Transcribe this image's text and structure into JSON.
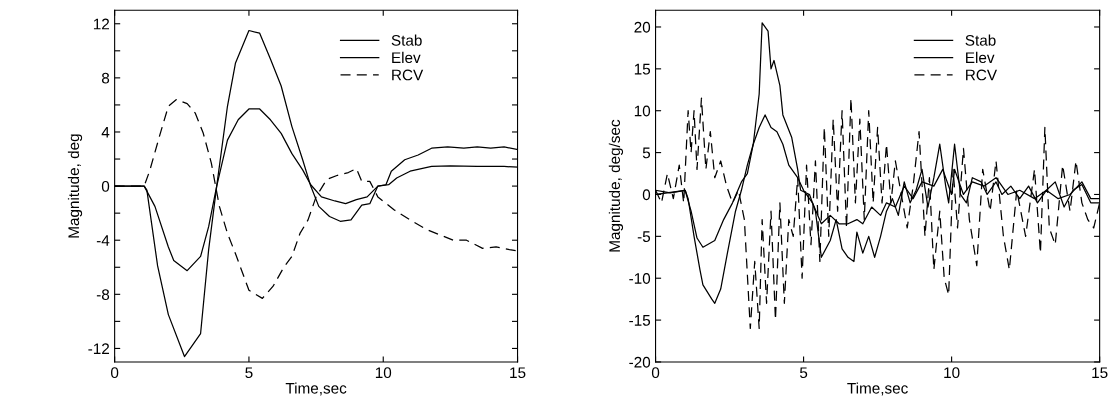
{
  "chart_data": [
    {
      "type": "line",
      "xlabel": "Time,sec",
      "ylabel": "Magnitude, deg",
      "xlim": [
        0,
        15
      ],
      "xticks": [
        0,
        5,
        10,
        15
      ],
      "ylim": [
        -13,
        13
      ],
      "yticks": [
        -12,
        {
          "value": -10,
          "label": null
        },
        -8,
        {
          "value": -6,
          "label": null
        },
        -4,
        {
          "value": -2,
          "label": null
        },
        0,
        {
          "value": 2,
          "label": null
        },
        4,
        {
          "value": 6,
          "label": null
        },
        8,
        {
          "value": 10,
          "label": null
        },
        12
      ],
      "grid": false,
      "legend": "top right",
      "marker": "none",
      "series": [
        {
          "name": "Stab",
          "color": "#000000",
          "line_style": "solid",
          "x": [
            0,
            1.1,
            1.2,
            1.6,
            2.0,
            2.6,
            3.2,
            3.5,
            3.8,
            4.2,
            4.5,
            5.0,
            5.4,
            5.8,
            6.2,
            6.6,
            7.0,
            7.3,
            7.6,
            8.0,
            8.4,
            8.8,
            9.2,
            9.5,
            9.8,
            10.1,
            10.3,
            10.8,
            11.3,
            11.8,
            12.4,
            13,
            13.5,
            14,
            14.5,
            15
          ],
          "values": [
            0,
            0,
            -0.3,
            -5.9,
            -9.5,
            -12.6,
            -10.9,
            -4.7,
            0,
            5.9,
            9.1,
            11.5,
            11.3,
            9.4,
            7.4,
            4.4,
            1.95,
            0,
            -1.5,
            -2.25,
            -2.6,
            -2.5,
            -1.4,
            -1.3,
            0,
            0.1,
            1.1,
            1.95,
            2.3,
            2.8,
            2.9,
            2.8,
            2.9,
            2.8,
            2.9,
            2.7
          ]
        },
        {
          "name": "Elev",
          "color": "#000000",
          "line_style": "solid",
          "x": [
            0,
            1.1,
            1.5,
            2.0,
            2.2,
            2.7,
            3.2,
            3.5,
            3.8,
            4.2,
            4.6,
            5.0,
            5.4,
            5.8,
            6.2,
            6.6,
            7.0,
            7.3,
            7.7,
            8.2,
            8.6,
            9.0,
            9.4,
            9.8,
            10.2,
            10.5,
            11,
            11.8,
            12.5,
            13.5,
            14.5,
            15
          ],
          "values": [
            0,
            0,
            -1.5,
            -4.5,
            -5.5,
            -6.25,
            -5.2,
            -3,
            0,
            3.4,
            4.9,
            5.7,
            5.7,
            4.9,
            3.9,
            2.4,
            1.2,
            0.1,
            -0.8,
            -1.1,
            -1.3,
            -1.0,
            -0.8,
            0,
            0.1,
            0.6,
            1.1,
            1.45,
            1.5,
            1.45,
            1.45,
            1.4
          ]
        },
        {
          "name": "RCV",
          "color": "#000000",
          "line_style": "dashed",
          "x": [
            0,
            1.1,
            1.3,
            1.7,
            2.0,
            2.3,
            2.7,
            3.0,
            3.3,
            3.6,
            3.9,
            4.2,
            4.5,
            5.0,
            5.5,
            5.9,
            6.3,
            6.6,
            6.9,
            7.2,
            7.5,
            7.9,
            8.3,
            8.7,
            9.0,
            9.2,
            9.5,
            9.8,
            10.4,
            11,
            11.6,
            12.1,
            12.6,
            13.1,
            13.7,
            14.2,
            14.7,
            15
          ],
          "values": [
            0,
            0,
            1.1,
            3.9,
            5.9,
            6.4,
            6.1,
            5.4,
            3.9,
            1.7,
            -1.5,
            -3.5,
            -5,
            -7.7,
            -8.3,
            -7.4,
            -6,
            -5.2,
            -3.5,
            -2.5,
            -0.8,
            0.5,
            0.8,
            1.0,
            1.3,
            0.35,
            0.35,
            -0.8,
            -1.75,
            -2.5,
            -3.2,
            -3.6,
            -4.0,
            -4.0,
            -4.6,
            -4.5,
            -4.7,
            -4.8
          ]
        }
      ]
    },
    {
      "type": "line",
      "xlabel": "Time,sec",
      "ylabel": "Magnitude, deg/sec",
      "xlim": [
        0,
        15
      ],
      "xticks": [
        0,
        5,
        10,
        15
      ],
      "ylim": [
        -20,
        22
      ],
      "yticks": [
        -20,
        -15,
        -10,
        -5,
        0,
        5,
        10,
        15,
        20
      ],
      "grid": false,
      "legend": "top right",
      "marker": "none",
      "series": [
        {
          "name": "Stab",
          "color": "#000000",
          "line_style": "solid",
          "x": [
            0,
            0.5,
            1.0,
            1.1,
            1.3,
            1.5,
            1.6,
            1.9,
            2.0,
            2.2,
            2.4,
            2.7,
            2.9,
            3.1,
            3.3,
            3.5,
            3.6,
            3.8,
            3.9,
            4.0,
            4.2,
            4.3,
            4.6,
            4.8,
            4.9,
            5.2,
            5.4,
            5.6,
            5.9,
            6.1,
            6.3,
            6.5,
            6.7,
            6.8,
            7.0,
            7.2,
            7.4,
            7.6,
            7.8,
            8.0,
            8.2,
            8.4,
            8.6,
            8.8,
            9.0,
            9.2,
            9.4,
            9.6,
            9.8,
            9.9,
            10.1,
            10.3,
            10.5,
            10.7,
            11,
            11.2,
            11.5,
            11.7,
            12,
            12.3,
            12.6,
            12.9,
            13.2,
            13.5,
            13.8,
            14.1,
            14.4,
            14.7,
            15
          ],
          "values": [
            0.5,
            0.2,
            0.5,
            -0.5,
            -5,
            -9,
            -10.8,
            -12.5,
            -13,
            -11.3,
            -7.5,
            -2,
            0.5,
            3.5,
            6,
            12,
            20.5,
            19.5,
            15,
            16,
            13,
            9.5,
            6.8,
            3,
            0.5,
            0,
            -2,
            -7.5,
            -5.5,
            -3,
            -6.5,
            -7.5,
            -8,
            -4.5,
            -7,
            -5,
            -7.5,
            -5,
            -2,
            -0.5,
            -2.5,
            1.5,
            -1,
            0.5,
            3,
            -1.5,
            2,
            6,
            1,
            -1,
            6,
            0,
            -1,
            2,
            1.5,
            0,
            1.5,
            0,
            1,
            -0.5,
            1,
            -1,
            0.5,
            1.5,
            -1.5,
            0.5,
            1.2,
            -1,
            -1
          ]
        },
        {
          "name": "Elev",
          "color": "#000000",
          "line_style": "solid",
          "x": [
            0,
            1.0,
            1.2,
            1.4,
            1.6,
            2.0,
            2.3,
            2.6,
            2.9,
            3.1,
            3.3,
            3.5,
            3.7,
            3.9,
            4.1,
            4.3,
            4.5,
            4.8,
            5.0,
            5.3,
            5.6,
            5.9,
            6.2,
            6.5,
            6.8,
            7.0,
            7.3,
            7.6,
            7.8,
            8.1,
            8.4,
            8.7,
            9.0,
            9.4,
            9.7,
            10.0,
            10.1,
            10.4,
            10.7,
            11.1,
            11.5,
            11.9,
            12.3,
            12.8,
            13.2,
            13.6,
            14,
            14.4,
            14.7,
            15
          ],
          "values": [
            0,
            0.5,
            -2,
            -5.2,
            -6.3,
            -5.5,
            -3,
            -1,
            1.5,
            2.5,
            6,
            8,
            9.5,
            8,
            7.5,
            6,
            3.5,
            2,
            0.5,
            -1,
            -3.5,
            -2.5,
            -3.5,
            -3.5,
            -3,
            -3.5,
            -1.5,
            -2.5,
            -1,
            -1.5,
            1,
            -0.5,
            1.5,
            1,
            3,
            0,
            3,
            0,
            1.5,
            1,
            2,
            0,
            0.5,
            -0.5,
            0.5,
            -0.5,
            0,
            1.5,
            -0.5,
            -0.5
          ]
        },
        {
          "name": "RCV",
          "color": "#000000",
          "line_style": "dashed",
          "x": [
            0,
            0.2,
            0.4,
            0.6,
            0.8,
            0.95,
            1.1,
            1.2,
            1.3,
            1.4,
            1.55,
            1.7,
            1.85,
            2.0,
            2.2,
            2.4,
            2.6,
            2.8,
            3.0,
            3.2,
            3.35,
            3.5,
            3.6,
            3.75,
            3.9,
            4.05,
            4.2,
            4.35,
            4.5,
            4.65,
            4.8,
            4.95,
            5.1,
            5.25,
            5.4,
            5.55,
            5.7,
            5.85,
            6.0,
            6.15,
            6.3,
            6.45,
            6.6,
            6.75,
            6.9,
            7.05,
            7.2,
            7.35,
            7.5,
            7.65,
            7.8,
            7.95,
            8.1,
            8.3,
            8.5,
            8.7,
            8.9,
            9.1,
            9.25,
            9.4,
            9.6,
            9.75,
            9.9,
            10.05,
            10.2,
            10.4,
            10.6,
            10.85,
            11.05,
            11.3,
            11.5,
            11.75,
            11.95,
            12.2,
            12.5,
            12.8,
            13.0,
            13.15,
            13.3,
            13.5,
            13.75,
            14.0,
            14.2,
            14.4,
            14.6,
            14.8,
            15
          ],
          "values": [
            0.5,
            -1,
            2.5,
            -0.5,
            3.5,
            -1,
            10,
            5,
            10,
            3,
            11.5,
            3,
            7.5,
            2,
            4,
            1,
            -1,
            0.5,
            -3,
            -16,
            -8,
            -16,
            -3,
            -13,
            -2,
            -15,
            -1,
            -13,
            -3,
            -5,
            2,
            -10,
            3.5,
            -6,
            4,
            -8,
            8,
            -5,
            9,
            -2,
            10,
            -4,
            11.5,
            -1,
            9,
            -3,
            10,
            -1,
            8,
            -1,
            6,
            -1,
            4,
            0,
            -4,
            1,
            7.5,
            -5,
            2,
            -9,
            -2,
            -10,
            -12,
            3,
            -4,
            5.5,
            -3,
            -8.5,
            3,
            -2,
            4,
            -5,
            -9,
            0.5,
            -5,
            3,
            -7,
            8,
            -4,
            -6,
            3.5,
            -2,
            4,
            -1,
            -3,
            -4,
            -1
          ]
        }
      ]
    }
  ]
}
